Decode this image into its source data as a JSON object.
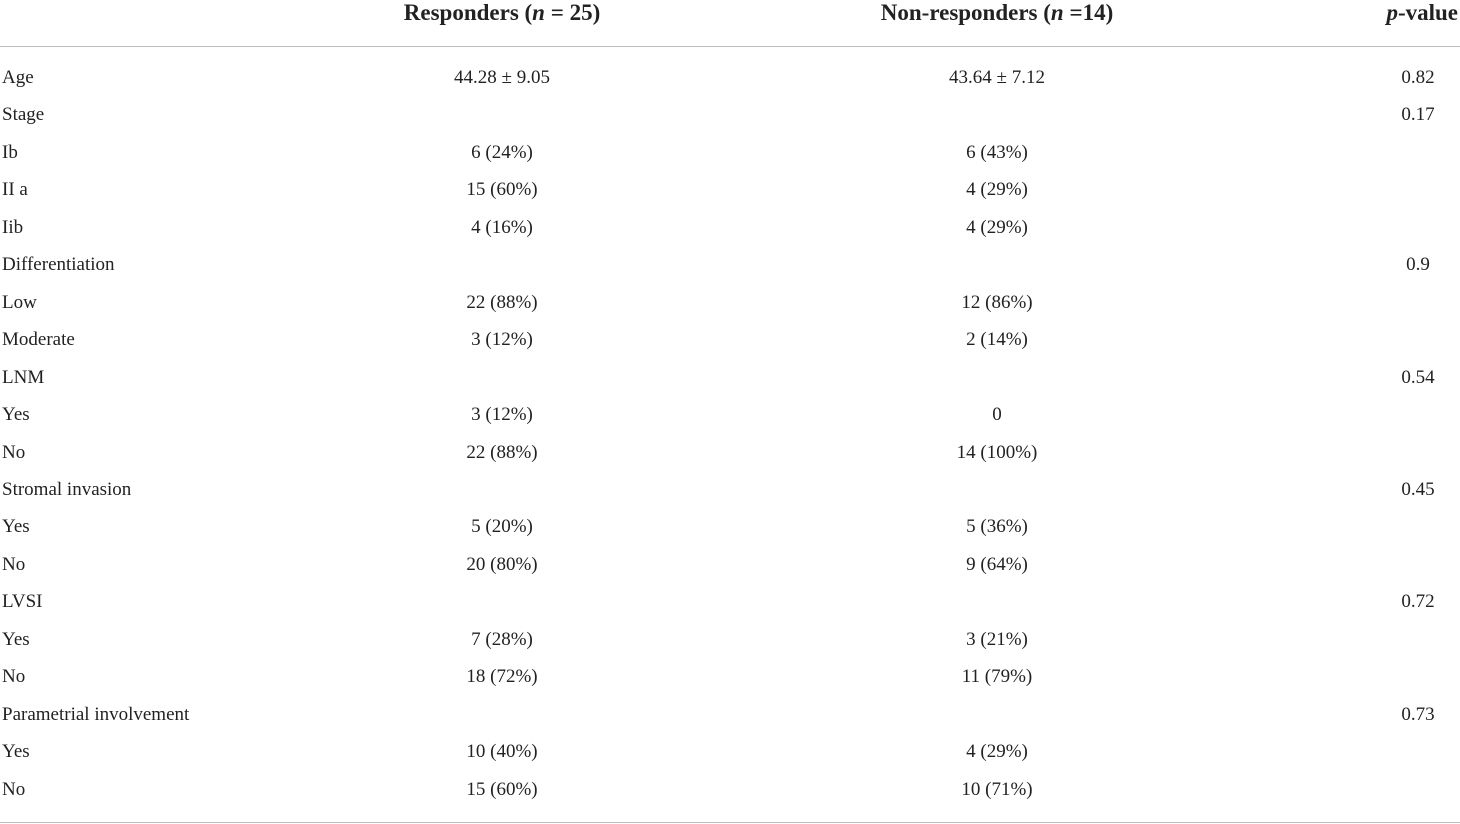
{
  "table": {
    "header": [
      [
        "Responders (",
        "n",
        " = 25)"
      ],
      [
        "Non-responders (",
        "n",
        " =14)"
      ],
      [
        "p",
        "-value"
      ]
    ],
    "rows": [
      [
        "Age",
        "44.28 ± 9.05",
        "43.64 ± 7.12",
        "0.82"
      ],
      [
        "Stage",
        null,
        null,
        "0.17"
      ],
      [
        "Ib",
        "6 (24%)",
        "6 (43%)",
        null
      ],
      [
        "II a",
        "15 (60%)",
        "4 (29%)",
        null
      ],
      [
        "Iib",
        "4 (16%)",
        "4 (29%)",
        null
      ],
      [
        "Differentiation",
        null,
        null,
        "0.9"
      ],
      [
        "Low",
        "22 (88%)",
        "12 (86%)",
        null
      ],
      [
        "Moderate",
        "3 (12%)",
        "2 (14%)",
        null
      ],
      [
        "LNM",
        null,
        null,
        "0.54"
      ],
      [
        "Yes",
        "3 (12%)",
        "0",
        null
      ],
      [
        "No",
        "22 (88%)",
        "14 (100%)",
        null
      ],
      [
        "Stromal invasion",
        null,
        null,
        "0.45"
      ],
      [
        "Yes",
        "5 (20%)",
        "5 (36%)",
        null
      ],
      [
        "No",
        "20 (80%)",
        "9 (64%)",
        null
      ],
      [
        "LVSI",
        null,
        null,
        "0.72"
      ],
      [
        "Yes",
        "7 (28%)",
        "3 (21%)",
        null
      ],
      [
        "No",
        "18 (72%)",
        "11 (79%)",
        null
      ],
      [
        "Parametrial involvement",
        null,
        null,
        "0.73"
      ],
      [
        "Yes",
        "10 (40%)",
        "4 (29%)",
        null
      ],
      [
        "No",
        "15 (60%)",
        "10 (71%)",
        null
      ]
    ]
  }
}
